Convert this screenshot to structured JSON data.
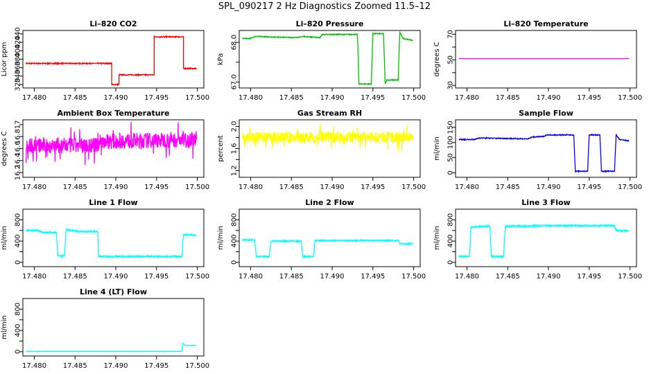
{
  "main_title": "SPL_090217  2 Hz Diagnostics Zoomed 11.5–12",
  "chart_data": [
    {
      "type": "line",
      "title": "Li–820 CO2",
      "ylabel": "Licor ppm",
      "x_ticks": [
        "17.480",
        "17.485",
        "17.490",
        "17.495",
        "17.500"
      ],
      "y_ticks": [
        320,
        340,
        360,
        380,
        400,
        420,
        440
      ],
      "ylim": [
        312,
        448
      ],
      "color": "#ff0000",
      "series": [
        {
          "segments": [
            [
              17.479,
              370
            ],
            [
              17.4895,
              370
            ],
            [
              17.4895,
              320
            ],
            [
              17.4904,
              320
            ],
            [
              17.4904,
              343
            ],
            [
              17.4947,
              343
            ],
            [
              17.4947,
              433
            ],
            [
              17.4983,
              433
            ],
            [
              17.4983,
              358
            ],
            [
              17.4999,
              358
            ]
          ],
          "noise": 1.2
        }
      ]
    },
    {
      "type": "line",
      "title": "Li–820 Pressure",
      "ylabel": "kPa",
      "x_ticks": [
        "17.480",
        "17.485",
        "17.490",
        "17.495",
        "17.500"
      ],
      "y_ticks": [
        67.0,
        67.5,
        68.0
      ],
      "y_tick_labels": [
        "67.0",
        "",
        "68.0"
      ],
      "ylim": [
        66.85,
        68.3
      ],
      "color": "#00c000",
      "series": [
        {
          "segments": [
            [
              17.479,
              68.1
            ],
            [
              17.48,
              68.1
            ],
            [
              17.4805,
              68.15
            ],
            [
              17.4855,
              68.12
            ],
            [
              17.4865,
              68.15
            ],
            [
              17.4885,
              68.12
            ],
            [
              17.4888,
              68.2
            ],
            [
              17.4931,
              68.2
            ],
            [
              17.4933,
              66.95
            ],
            [
              17.4948,
              66.95
            ],
            [
              17.495,
              68.22
            ],
            [
              17.4963,
              68.22
            ],
            [
              17.4965,
              66.95
            ],
            [
              17.4967,
              67.05
            ],
            [
              17.4981,
              67.05
            ],
            [
              17.4983,
              68.25
            ],
            [
              17.4987,
              68.1
            ],
            [
              17.4999,
              68.05
            ]
          ],
          "noise": 0.01
        }
      ]
    },
    {
      "type": "line",
      "title": "Li–820 Temperature",
      "ylabel": "degrees C",
      "x_ticks": [
        "17.480",
        "17.485",
        "17.490",
        "17.495",
        "17.500"
      ],
      "y_ticks": [
        30,
        40,
        50,
        60,
        70
      ],
      "y_tick_labels": [
        "30",
        "",
        "50",
        "",
        "70"
      ],
      "ylim": [
        28,
        73
      ],
      "color": "#ff00ff",
      "series": [
        {
          "segments": [
            [
              17.479,
              51
            ],
            [
              17.4999,
              51
            ]
          ],
          "noise": 0
        }
      ]
    },
    {
      "type": "line",
      "title": "Ambient Box Temperature",
      "ylabel": "degrees C",
      "x_ticks": [
        "17.480",
        "17.485",
        "17.490",
        "17.495",
        "17.500"
      ],
      "y_ticks": [
        16.2,
        16.4,
        16.6,
        16.8,
        17.0
      ],
      "ylim": [
        16.12,
        17.08
      ],
      "color": "#ff00ff",
      "series": [
        {
          "segments": [
            [
              17.479,
              16.65
            ],
            [
              17.4875,
              16.65
            ],
            [
              17.488,
              16.72
            ],
            [
              17.4999,
              16.75
            ]
          ],
          "noise": 0.13,
          "spiky": true
        }
      ]
    },
    {
      "type": "line",
      "title": "Gas Stream RH",
      "ylabel": "percent",
      "x_ticks": [
        "17.480",
        "17.485",
        "17.490",
        "17.495",
        "17.500"
      ],
      "y_ticks": [
        1.2,
        1.4,
        1.6,
        1.8,
        2.0
      ],
      "y_tick_labels": [
        "1.2",
        "",
        "1.6",
        "",
        "2.0"
      ],
      "ylim": [
        1.08,
        2.12
      ],
      "color": "#ffff00",
      "series": [
        {
          "segments": [
            [
              17.479,
              1.8
            ],
            [
              17.4999,
              1.8
            ]
          ],
          "noise": 0.1,
          "spiky": true
        }
      ]
    },
    {
      "type": "line",
      "title": "Sample Flow",
      "ylabel": "ml/min",
      "x_ticks": [
        "17.480",
        "17.485",
        "17.490",
        "17.495",
        "17.500"
      ],
      "y_ticks": [
        0,
        50,
        100,
        150
      ],
      "ylim": [
        -15,
        175
      ],
      "color": "#0000ff",
      "series": [
        {
          "segments": [
            [
              17.479,
              110
            ],
            [
              17.481,
              110
            ],
            [
              17.4815,
              115
            ],
            [
              17.4875,
              112
            ],
            [
              17.488,
              118
            ],
            [
              17.4895,
              120
            ],
            [
              17.4897,
              125
            ],
            [
              17.4931,
              125
            ],
            [
              17.4933,
              5
            ],
            [
              17.4948,
              5
            ],
            [
              17.495,
              125
            ],
            [
              17.4963,
              125
            ],
            [
              17.4965,
              5
            ],
            [
              17.4981,
              5
            ],
            [
              17.4983,
              125
            ],
            [
              17.4987,
              110
            ],
            [
              17.4999,
              105
            ]
          ],
          "noise": 1.5
        }
      ]
    },
    {
      "type": "line",
      "title": "Line 1 Flow",
      "ylabel": "ml/min",
      "x_ticks": [
        "17.480",
        "17.485",
        "17.490",
        "17.495",
        "17.500"
      ],
      "y_ticks": [
        0,
        200,
        400,
        600,
        800
      ],
      "y_tick_labels": [
        "0",
        "",
        "400",
        "",
        "800"
      ],
      "ylim": [
        -80,
        1000
      ],
      "color": "#00ffff",
      "series": [
        {
          "segments": [
            [
              17.479,
              600
            ],
            [
              17.4805,
              600
            ],
            [
              17.481,
              560
            ],
            [
              17.4827,
              560
            ],
            [
              17.4829,
              120
            ],
            [
              17.4837,
              120
            ],
            [
              17.4839,
              620
            ],
            [
              17.4846,
              600
            ],
            [
              17.4856,
              580
            ],
            [
              17.4878,
              580
            ],
            [
              17.4879,
              110
            ],
            [
              17.4981,
              110
            ],
            [
              17.4983,
              520
            ],
            [
              17.4999,
              510
            ]
          ],
          "noise": 15
        }
      ]
    },
    {
      "type": "line",
      "title": "Line 2 Flow",
      "ylabel": "ml/min",
      "x_ticks": [
        "17.480",
        "17.485",
        "17.490",
        "17.495",
        "17.500"
      ],
      "y_ticks": [
        0,
        200,
        400,
        600,
        800
      ],
      "y_tick_labels": [
        "0",
        "",
        "400",
        "",
        "800"
      ],
      "ylim": [
        -80,
        1000
      ],
      "color": "#00ffff",
      "series": [
        {
          "segments": [
            [
              17.479,
              420
            ],
            [
              17.4805,
              420
            ],
            [
              17.4807,
              110
            ],
            [
              17.4823,
              110
            ],
            [
              17.4825,
              400
            ],
            [
              17.4862,
              400
            ],
            [
              17.4864,
              110
            ],
            [
              17.4877,
              110
            ],
            [
              17.4879,
              410
            ],
            [
              17.4981,
              410
            ],
            [
              17.4983,
              350
            ],
            [
              17.4999,
              350
            ]
          ],
          "noise": 12
        }
      ]
    },
    {
      "type": "line",
      "title": "Line 3 Flow",
      "ylabel": "ml/min",
      "x_ticks": [
        "17.480",
        "17.485",
        "17.490",
        "17.495",
        "17.500"
      ],
      "y_ticks": [
        0,
        200,
        400,
        600,
        800
      ],
      "y_tick_labels": [
        "0",
        "",
        "400",
        "",
        "800"
      ],
      "ylim": [
        -80,
        1000
      ],
      "color": "#00ffff",
      "series": [
        {
          "segments": [
            [
              17.479,
              110
            ],
            [
              17.4803,
              110
            ],
            [
              17.4805,
              660
            ],
            [
              17.4812,
              670
            ],
            [
              17.4828,
              680
            ],
            [
              17.483,
              110
            ],
            [
              17.4845,
              110
            ],
            [
              17.4847,
              680
            ],
            [
              17.487,
              680
            ],
            [
              17.4899,
              690
            ],
            [
              17.4981,
              690
            ],
            [
              17.4983,
              600
            ],
            [
              17.4999,
              590
            ]
          ],
          "noise": 15
        }
      ]
    },
    {
      "type": "line",
      "title": "Line 4 (LT) Flow",
      "ylabel": "ml/min",
      "x_ticks": [
        "17.480",
        "17.485",
        "17.490",
        "17.495",
        "17.500"
      ],
      "y_ticks": [
        0,
        200,
        400,
        600,
        800
      ],
      "y_tick_labels": [
        "0",
        "",
        "400",
        "",
        "800"
      ],
      "ylim": [
        -80,
        1000
      ],
      "color": "#00ffff",
      "series": [
        {
          "segments": [
            [
              17.479,
              5
            ],
            [
              17.4981,
              5
            ],
            [
              17.4982,
              160
            ],
            [
              17.4985,
              120
            ],
            [
              17.4999,
              120
            ]
          ],
          "noise": 3
        }
      ]
    }
  ]
}
